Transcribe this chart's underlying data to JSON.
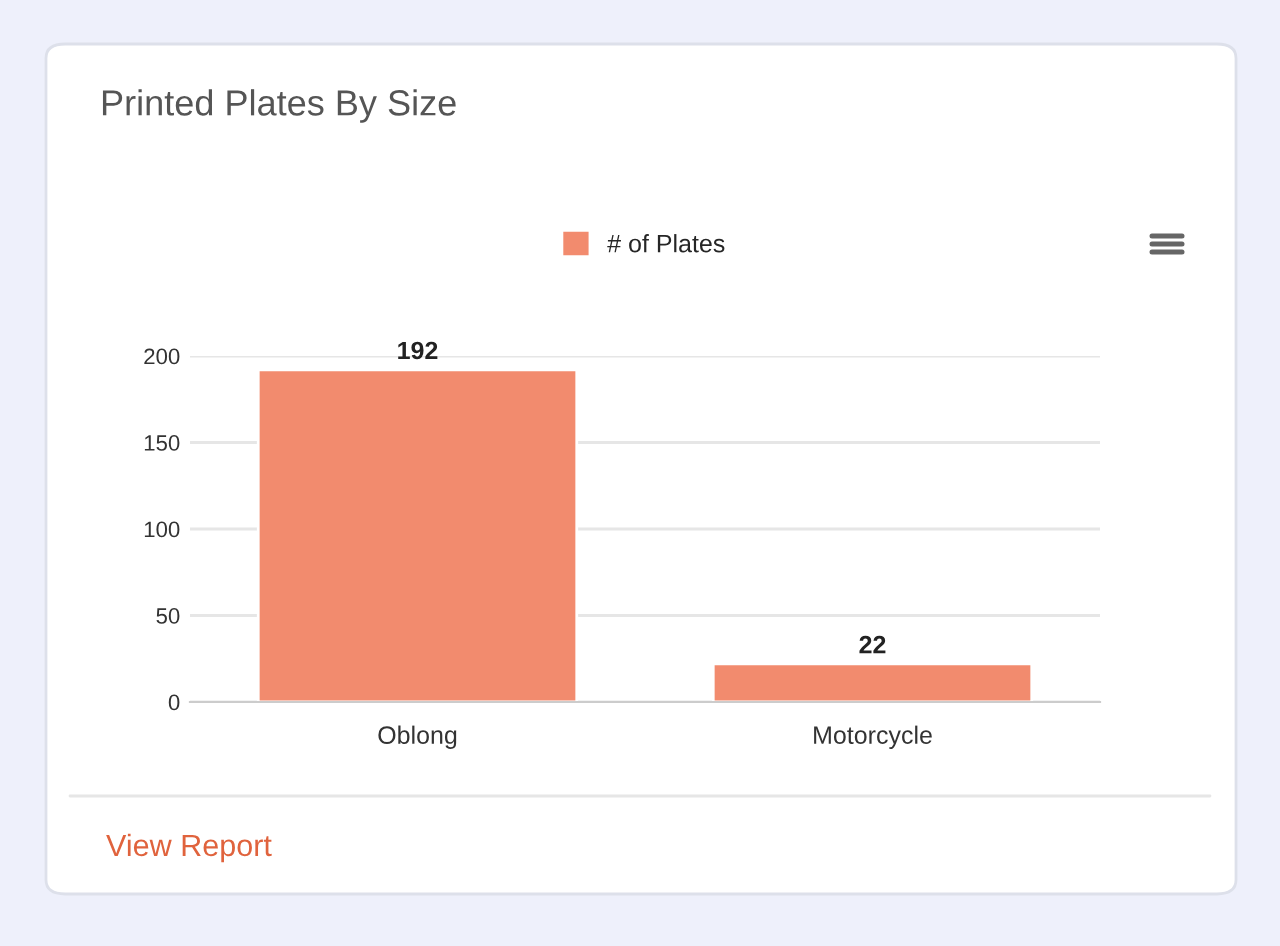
{
  "chart_data": {
    "type": "bar",
    "title": "Printed Plates By Size",
    "categories": [
      "Oblong",
      "Motorcycle"
    ],
    "series": [
      {
        "name": "# of Plates",
        "color": "#f28b6e",
        "values": [
          192,
          22
        ]
      }
    ],
    "ylim": [
      0,
      200
    ],
    "yticks": [
      0,
      50,
      100,
      150,
      200
    ],
    "grid": "y",
    "legend": "top",
    "data_labels": true,
    "annotations": [
      "View Report"
    ]
  }
}
